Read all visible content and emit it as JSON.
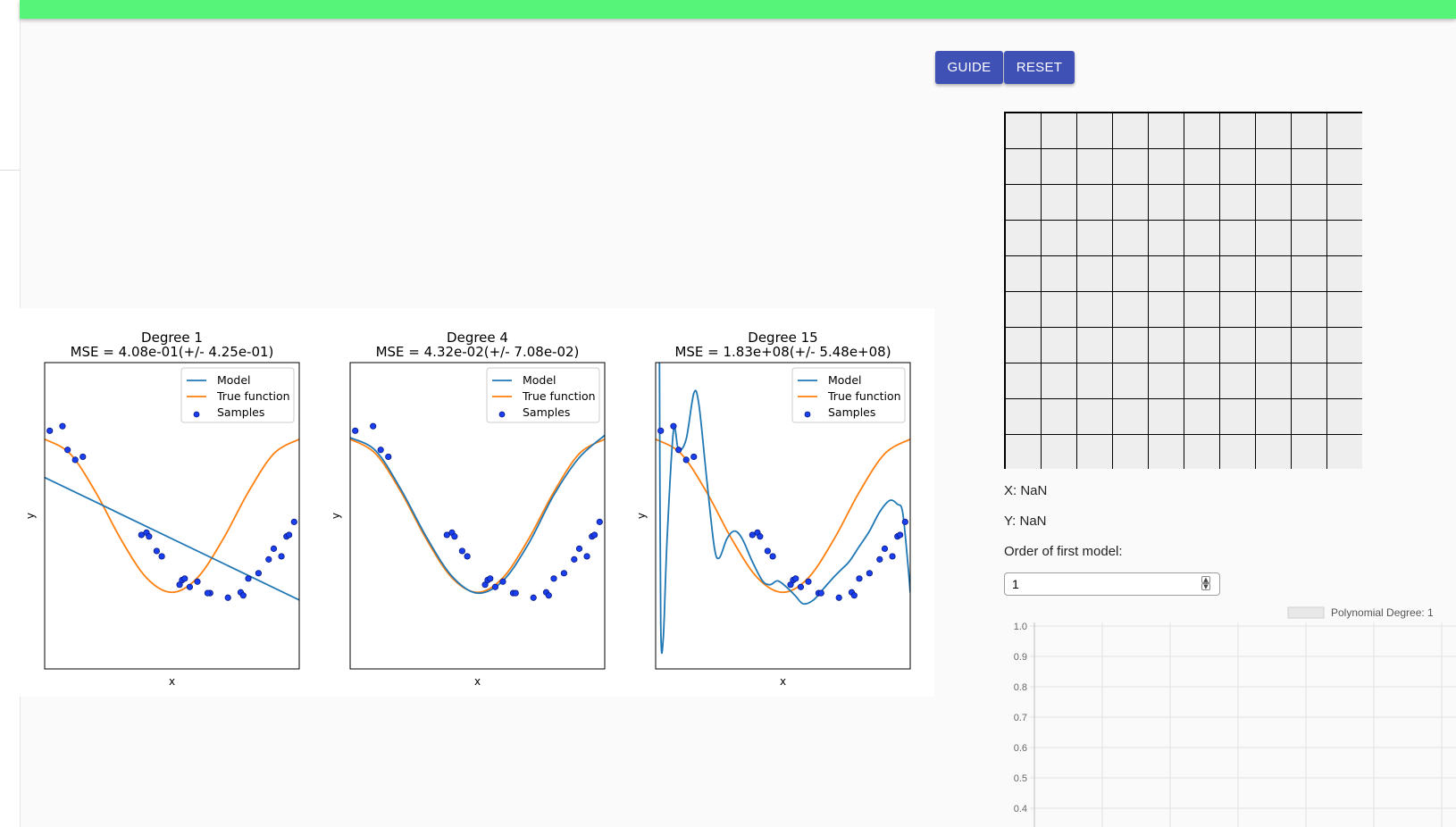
{
  "header": {
    "title": ""
  },
  "toolbar": {
    "guide_label": "GUIDE",
    "reset_label": "RESET"
  },
  "coords": {
    "x_label": "X: NaN",
    "y_label": "Y: NaN"
  },
  "order": {
    "label": "Order of first model:",
    "value": "1"
  },
  "colors": {
    "model": "#1f77b4",
    "true_function": "#ff7f0e",
    "samples": "#1a3ff0",
    "button": "#3f51b5",
    "app_bar": "#56f57a"
  },
  "plots": [
    {
      "title": "Degree 1",
      "subtitle": "MSE = 4.08e-01(+/- 4.25e-01)",
      "xlabel": "x",
      "ylabel": "y"
    },
    {
      "title": "Degree 4",
      "subtitle": "MSE = 4.32e-02(+/- 7.08e-02)",
      "xlabel": "x",
      "ylabel": "y"
    },
    {
      "title": "Degree 15",
      "subtitle": "MSE = 1.83e+08(+/- 5.48e+08)",
      "xlabel": "x",
      "ylabel": "y"
    }
  ],
  "legend": {
    "model": "Model",
    "true_function": "True function",
    "samples": "Samples"
  },
  "chart_data": [
    {
      "type": "line",
      "title": "Degree 1",
      "subtitle": "MSE = 4.08e-01(+/- 4.25e-01)",
      "xlabel": "x",
      "ylabel": "y",
      "xlim": [
        0,
        1
      ],
      "ylim": [
        -2,
        2
      ],
      "legend_position": "top-right",
      "series": [
        {
          "name": "Model",
          "x": [
            0,
            1
          ],
          "y": [
            0.5,
            -1.1
          ]
        },
        {
          "name": "True function",
          "x": [
            0,
            0.1,
            0.2,
            0.3,
            0.4,
            0.5,
            0.6,
            0.7,
            0.8,
            0.9,
            1
          ],
          "y": [
            1,
            0.81,
            0.31,
            -0.31,
            -0.81,
            -1,
            -0.81,
            -0.31,
            0.31,
            0.81,
            1
          ]
        },
        {
          "name": "Samples",
          "x": [
            0.02,
            0.07,
            0.09,
            0.12,
            0.15,
            0.38,
            0.4,
            0.41,
            0.44,
            0.46,
            0.53,
            0.54,
            0.55,
            0.57,
            0.6,
            0.65,
            0.64,
            0.72,
            0.77,
            0.78,
            0.8,
            0.84,
            0.88,
            0.9,
            0.93,
            0.95,
            0.96,
            0.98
          ],
          "y": [
            1.11,
            1.17,
            0.86,
            0.73,
            0.77,
            -0.25,
            -0.22,
            -0.27,
            -0.46,
            -0.53,
            -0.9,
            -0.84,
            -0.82,
            -0.93,
            -0.86,
            -1.01,
            -1.01,
            -1.07,
            -1,
            -1.04,
            -0.82,
            -0.75,
            -0.57,
            -0.43,
            -0.53,
            -0.27,
            -0.25,
            -0.08
          ]
        }
      ]
    },
    {
      "type": "line",
      "title": "Degree 4",
      "subtitle": "MSE = 4.32e-02(+/- 7.08e-02)",
      "xlabel": "x",
      "ylabel": "y",
      "xlim": [
        0,
        1
      ],
      "ylim": [
        -2,
        2
      ],
      "legend_position": "top-right",
      "series": [
        {
          "name": "Model",
          "x": [
            0,
            0.1,
            0.2,
            0.3,
            0.4,
            0.5,
            0.6,
            0.7,
            0.8,
            0.9,
            1
          ],
          "y": [
            1.02,
            0.85,
            0.34,
            -0.28,
            -0.79,
            -1.01,
            -0.85,
            -0.37,
            0.27,
            0.76,
            1.05
          ]
        },
        {
          "name": "True function",
          "x": [
            0,
            0.1,
            0.2,
            0.3,
            0.4,
            0.5,
            0.6,
            0.7,
            0.8,
            0.9,
            1
          ],
          "y": [
            1,
            0.81,
            0.31,
            -0.31,
            -0.81,
            -1,
            -0.81,
            -0.31,
            0.31,
            0.81,
            1
          ]
        },
        {
          "name": "Samples",
          "x": [
            0.02,
            0.09,
            0.12,
            0.15,
            0.38,
            0.4,
            0.41,
            0.44,
            0.46,
            0.53,
            0.54,
            0.55,
            0.57,
            0.6,
            0.64,
            0.65,
            0.72,
            0.77,
            0.78,
            0.8,
            0.84,
            0.88,
            0.9,
            0.93,
            0.95,
            0.96,
            0.98
          ],
          "y": [
            1.11,
            1.17,
            0.86,
            0.77,
            -0.25,
            -0.22,
            -0.27,
            -0.46,
            -0.53,
            -0.9,
            -0.84,
            -0.82,
            -0.93,
            -0.86,
            -1.01,
            -1.01,
            -1.07,
            -1,
            -1.04,
            -0.82,
            -0.75,
            -0.57,
            -0.43,
            -0.53,
            -0.27,
            -0.25,
            -0.08
          ]
        }
      ]
    },
    {
      "type": "line",
      "title": "Degree 15",
      "subtitle": "MSE = 1.83e+08(+/- 5.48e+08)",
      "xlabel": "x",
      "ylabel": "y",
      "xlim": [
        0,
        1
      ],
      "ylim": [
        -2,
        2
      ],
      "legend_position": "top-right",
      "series": [
        {
          "name": "Model",
          "x": [
            0.015,
            0.02,
            0.03,
            0.045,
            0.07,
            0.09,
            0.12,
            0.15,
            0.17,
            0.2,
            0.23,
            0.25,
            0.28,
            0.31,
            0.34,
            0.38,
            0.42,
            0.45,
            0.48,
            0.52,
            0.55,
            0.58,
            0.62,
            0.66,
            0.7,
            0.73,
            0.76,
            0.8,
            0.84,
            0.88,
            0.92,
            0.95,
            0.97,
            0.99,
            1.0
          ],
          "y": [
            2.0,
            -1.4,
            -1.6,
            -0.3,
            1.11,
            0.86,
            1.0,
            1.6,
            1.45,
            0.5,
            -0.4,
            -0.55,
            -0.3,
            -0.2,
            -0.3,
            -0.6,
            -0.85,
            -0.9,
            -0.85,
            -0.95,
            -1.05,
            -1.15,
            -1.1,
            -0.95,
            -0.8,
            -0.7,
            -0.6,
            -0.4,
            -0.2,
            0.05,
            0.2,
            0.15,
            0.05,
            -0.6,
            -1.0
          ]
        },
        {
          "name": "True function",
          "x": [
            0,
            0.1,
            0.2,
            0.3,
            0.4,
            0.5,
            0.6,
            0.7,
            0.8,
            0.9,
            1
          ],
          "y": [
            1,
            0.81,
            0.31,
            -0.31,
            -0.81,
            -1,
            -0.81,
            -0.31,
            0.31,
            0.81,
            1
          ]
        },
        {
          "name": "Samples",
          "x": [
            0.02,
            0.07,
            0.09,
            0.12,
            0.15,
            0.38,
            0.4,
            0.41,
            0.44,
            0.46,
            0.53,
            0.54,
            0.55,
            0.57,
            0.6,
            0.64,
            0.65,
            0.72,
            0.77,
            0.78,
            0.8,
            0.84,
            0.88,
            0.9,
            0.93,
            0.95,
            0.96,
            0.98
          ],
          "y": [
            1.11,
            1.17,
            0.86,
            0.73,
            0.77,
            -0.25,
            -0.22,
            -0.27,
            -0.46,
            -0.53,
            -0.9,
            -0.84,
            -0.82,
            -0.93,
            -0.86,
            -1.01,
            -1.01,
            -1.07,
            -1,
            -1.04,
            -0.82,
            -0.75,
            -0.57,
            -0.43,
            -0.53,
            -0.27,
            -0.25,
            -0.08
          ]
        }
      ]
    },
    {
      "type": "line",
      "legend": "Polynomial Degree: 1",
      "legend_position": "top-right",
      "y_ticks": [
        "1.0",
        "0.9",
        "0.8",
        "0.7",
        "0.6",
        "0.5",
        "0.4"
      ],
      "ylim": [
        0.4,
        1.0
      ],
      "grid": true,
      "series": [
        {
          "name": "Polynomial Degree: 1",
          "values": []
        }
      ]
    }
  ]
}
